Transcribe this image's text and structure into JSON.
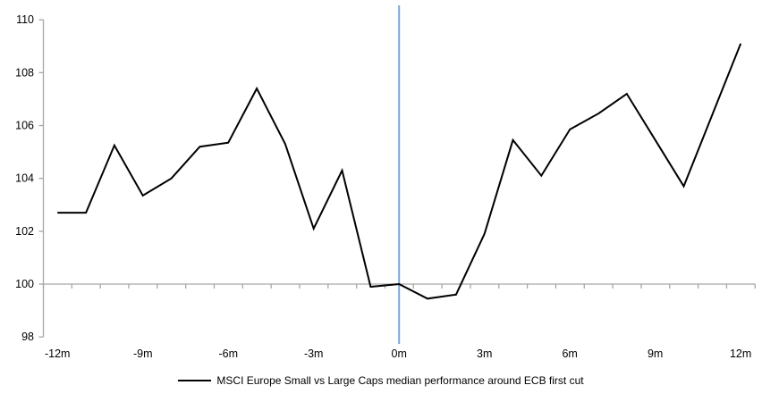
{
  "chart_data": {
    "type": "line",
    "title": "",
    "legend": "MSCI Europe Small vs Large Caps median performance around ECB first cut",
    "legend_position": "bottom-center",
    "x_unit": "months relative to ECB first cut",
    "x": [
      -12,
      -11,
      -10,
      -9,
      -8,
      -7,
      -6,
      -5,
      -4,
      -3,
      -2,
      -1,
      0,
      1,
      2,
      3,
      4,
      5,
      6,
      7,
      8,
      9,
      10,
      11,
      12
    ],
    "series": [
      {
        "name": "MSCI Europe Small vs Large Caps median performance around ECB first cut",
        "color": "#000000",
        "values": [
          102.7,
          102.7,
          105.25,
          103.35,
          104.0,
          105.2,
          105.35,
          107.4,
          105.3,
          102.1,
          104.3,
          99.9,
          100.0,
          99.45,
          99.6,
          101.9,
          105.45,
          104.1,
          105.85,
          106.45,
          107.2,
          105.45,
          103.7,
          106.4,
          109.1
        ]
      }
    ],
    "ylim": [
      98,
      110
    ],
    "y_ticks": [
      110,
      108,
      106,
      104,
      102,
      100,
      98
    ],
    "x_tick_labels": [
      "-12m",
      "-9m",
      "-6m",
      "-3m",
      "0m",
      "3m",
      "6m",
      "9m",
      "12m"
    ],
    "x_tick_label_months": [
      -12,
      -9,
      -6,
      -3,
      0,
      3,
      6,
      9,
      12
    ],
    "baseline": 100,
    "event_line_x": 0,
    "grid": false,
    "colors": {
      "series": "#000000",
      "event_line": "#7da7d9",
      "axis": "#a6a6a6",
      "text": "#000000"
    }
  }
}
